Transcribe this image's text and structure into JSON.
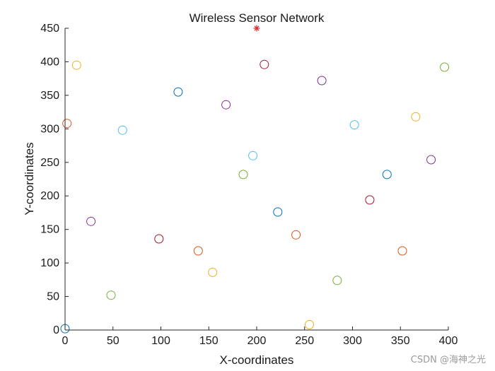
{
  "chart_data": {
    "type": "scatter",
    "title": "Wireless Sensor Network",
    "xlabel": "X-coordinates",
    "ylabel": "Y-coordinates",
    "xlim": [
      0,
      400
    ],
    "ylim": [
      0,
      450
    ],
    "xticks": [
      "0",
      "50",
      "100",
      "150",
      "200",
      "250",
      "300",
      "350",
      "400"
    ],
    "yticks": [
      "0",
      "50",
      "100",
      "150",
      "200",
      "250",
      "300",
      "350",
      "400",
      "450"
    ],
    "grid": false,
    "marker": "open-circle",
    "colors": [
      "#0072BD",
      "#D95319",
      "#EDB120",
      "#7E2F8E",
      "#77AC30",
      "#4DBEEE",
      "#A2142F"
    ],
    "base_station": {
      "x": 200,
      "y": 450,
      "marker": "asterisk",
      "color": "#D62728"
    },
    "sample_points": [
      {
        "x": 0,
        "y": 2
      },
      {
        "x": 2,
        "y": 308
      },
      {
        "x": 12,
        "y": 395
      },
      {
        "x": 27,
        "y": 162
      },
      {
        "x": 48,
        "y": 52
      },
      {
        "x": 60,
        "y": 298
      },
      {
        "x": 98,
        "y": 136
      },
      {
        "x": 118,
        "y": 355
      },
      {
        "x": 139,
        "y": 118
      },
      {
        "x": 154,
        "y": 86
      },
      {
        "x": 168,
        "y": 336
      },
      {
        "x": 186,
        "y": 232
      },
      {
        "x": 196,
        "y": 260
      },
      {
        "x": 208,
        "y": 396
      },
      {
        "x": 222,
        "y": 176
      },
      {
        "x": 241,
        "y": 142
      },
      {
        "x": 255,
        "y": 8
      },
      {
        "x": 268,
        "y": 372
      },
      {
        "x": 284,
        "y": 74
      },
      {
        "x": 302,
        "y": 306
      },
      {
        "x": 318,
        "y": 194
      },
      {
        "x": 336,
        "y": 232
      },
      {
        "x": 352,
        "y": 118
      },
      {
        "x": 366,
        "y": 318
      },
      {
        "x": 382,
        "y": 254
      },
      {
        "x": 396,
        "y": 392
      }
    ]
  },
  "watermark": "CSDN @海神之光"
}
